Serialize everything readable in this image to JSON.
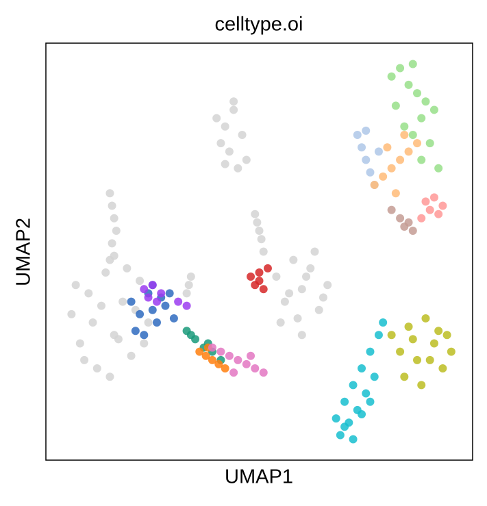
{
  "chart_data": {
    "type": "scatter",
    "title": "celltype.oi",
    "xlabel": "UMAP1",
    "ylabel": "UMAP2",
    "xlim": [
      0,
      100
    ],
    "ylim": [
      0,
      100
    ],
    "grid": false,
    "series": [
      {
        "color": "#d3d3d3",
        "x": [
          6,
          8,
          10,
          12,
          14,
          16,
          18,
          20,
          22,
          24,
          7,
          11,
          15,
          19,
          23,
          9,
          13,
          17,
          21,
          15
        ],
        "y": [
          35,
          28,
          40,
          22,
          45,
          30,
          38,
          25,
          43,
          33,
          42,
          33,
          20,
          46,
          28,
          24,
          37,
          29,
          36,
          48
        ]
      },
      {
        "color": "#d3d3d3",
        "x": [
          15,
          15.5,
          16,
          16.5,
          15.5,
          16
        ],
        "y": [
          64,
          61,
          58,
          55,
          52,
          49
        ]
      },
      {
        "color": "#d3d3d3",
        "x": [
          40,
          42,
          44,
          46,
          47,
          41,
          43,
          45,
          44,
          42
        ],
        "y": [
          82,
          80,
          84,
          78,
          72,
          76,
          74,
          70,
          86,
          71
        ]
      },
      {
        "color": "#d3d3d3",
        "x": [
          54,
          56,
          58,
          60,
          62,
          64,
          66,
          55,
          59,
          63,
          57,
          61,
          65,
          60
        ],
        "y": [
          44,
          38,
          48,
          41,
          46,
          36,
          42,
          33,
          34,
          50,
          40,
          44,
          39,
          30
        ]
      },
      {
        "color": "#d3d3d3",
        "x": [
          49,
          49.5,
          50,
          50.5,
          51
        ],
        "y": [
          59,
          57,
          55,
          53,
          50
        ]
      },
      {
        "color": "#d3d3d3",
        "x": [
          33,
          33.5,
          34
        ],
        "y": [
          40,
          42,
          44
        ]
      },
      {
        "color": "#2f6bc0",
        "x": [
          20,
          22,
          24,
          26,
          28,
          30,
          23,
          25,
          27,
          21,
          29,
          25
        ],
        "y": [
          38,
          35,
          40,
          33,
          37,
          34,
          30,
          42,
          39,
          31,
          40,
          36
        ]
      },
      {
        "color": "#9b3cf0",
        "x": [
          23,
          25,
          27,
          31,
          33,
          26,
          24
        ],
        "y": [
          41,
          42,
          40,
          38,
          37,
          38,
          39
        ]
      },
      {
        "color": "#d62728",
        "x": [
          48,
          49,
          50,
          51,
          52,
          50
        ],
        "y": [
          44,
          42,
          45,
          41,
          46,
          43
        ]
      },
      {
        "color": "#1a9a7a",
        "x": [
          33,
          35,
          37,
          39,
          41,
          34,
          38
        ],
        "y": [
          31,
          29,
          27,
          26,
          24,
          30,
          28
        ]
      },
      {
        "color": "#ff7f0e",
        "x": [
          36,
          37.5,
          39,
          40.5,
          42,
          38
        ],
        "y": [
          26,
          25,
          24,
          23,
          22,
          27
        ]
      },
      {
        "color": "#e377c2",
        "x": [
          39,
          41,
          43,
          45,
          47,
          49,
          51,
          44,
          48
        ],
        "y": [
          27,
          26,
          25,
          24,
          23,
          22,
          21,
          21,
          25
        ]
      },
      {
        "color": "#98df8a",
        "x": [
          81,
          83,
          85,
          87,
          89,
          91,
          82,
          84,
          86,
          88,
          90,
          86,
          88,
          92
        ],
        "y": [
          92,
          94,
          90,
          88,
          86,
          84,
          85,
          80,
          78,
          82,
          76,
          95,
          72,
          70
        ]
      },
      {
        "color": "#aec7e8",
        "x": [
          73,
          74,
          75,
          76,
          77,
          78,
          75
        ],
        "y": [
          78,
          75,
          72,
          69,
          66,
          74,
          79
        ]
      },
      {
        "color": "#ffbb78",
        "x": [
          77,
          79,
          81,
          83,
          85,
          87,
          80,
          84,
          82
        ],
        "y": [
          66,
          68,
          70,
          72,
          74,
          76,
          75,
          78,
          64
        ]
      },
      {
        "color": "#c49c94",
        "x": [
          81,
          83,
          84,
          85,
          86
        ],
        "y": [
          60,
          58,
          56,
          57,
          55
        ]
      },
      {
        "color": "#ff9896",
        "x": [
          88,
          89,
          90,
          91,
          92,
          93
        ],
        "y": [
          58,
          62,
          60,
          63,
          59,
          61
        ]
      },
      {
        "color": "#17becf",
        "x": [
          68,
          69,
          70,
          71,
          72,
          73,
          74,
          75,
          76,
          77,
          78,
          79,
          70,
          72,
          74,
          76
        ],
        "y": [
          10,
          6,
          14,
          9,
          18,
          12,
          22,
          16,
          26,
          20,
          30,
          33,
          8,
          5,
          11,
          14
        ]
      },
      {
        "color": "#bcbd22",
        "x": [
          81,
          83,
          85,
          87,
          89,
          91,
          93,
          95,
          84,
          88,
          92,
          86,
          90,
          94
        ],
        "y": [
          30,
          26,
          32,
          24,
          34,
          28,
          22,
          26,
          20,
          18,
          31,
          29,
          24,
          30
        ]
      }
    ]
  }
}
